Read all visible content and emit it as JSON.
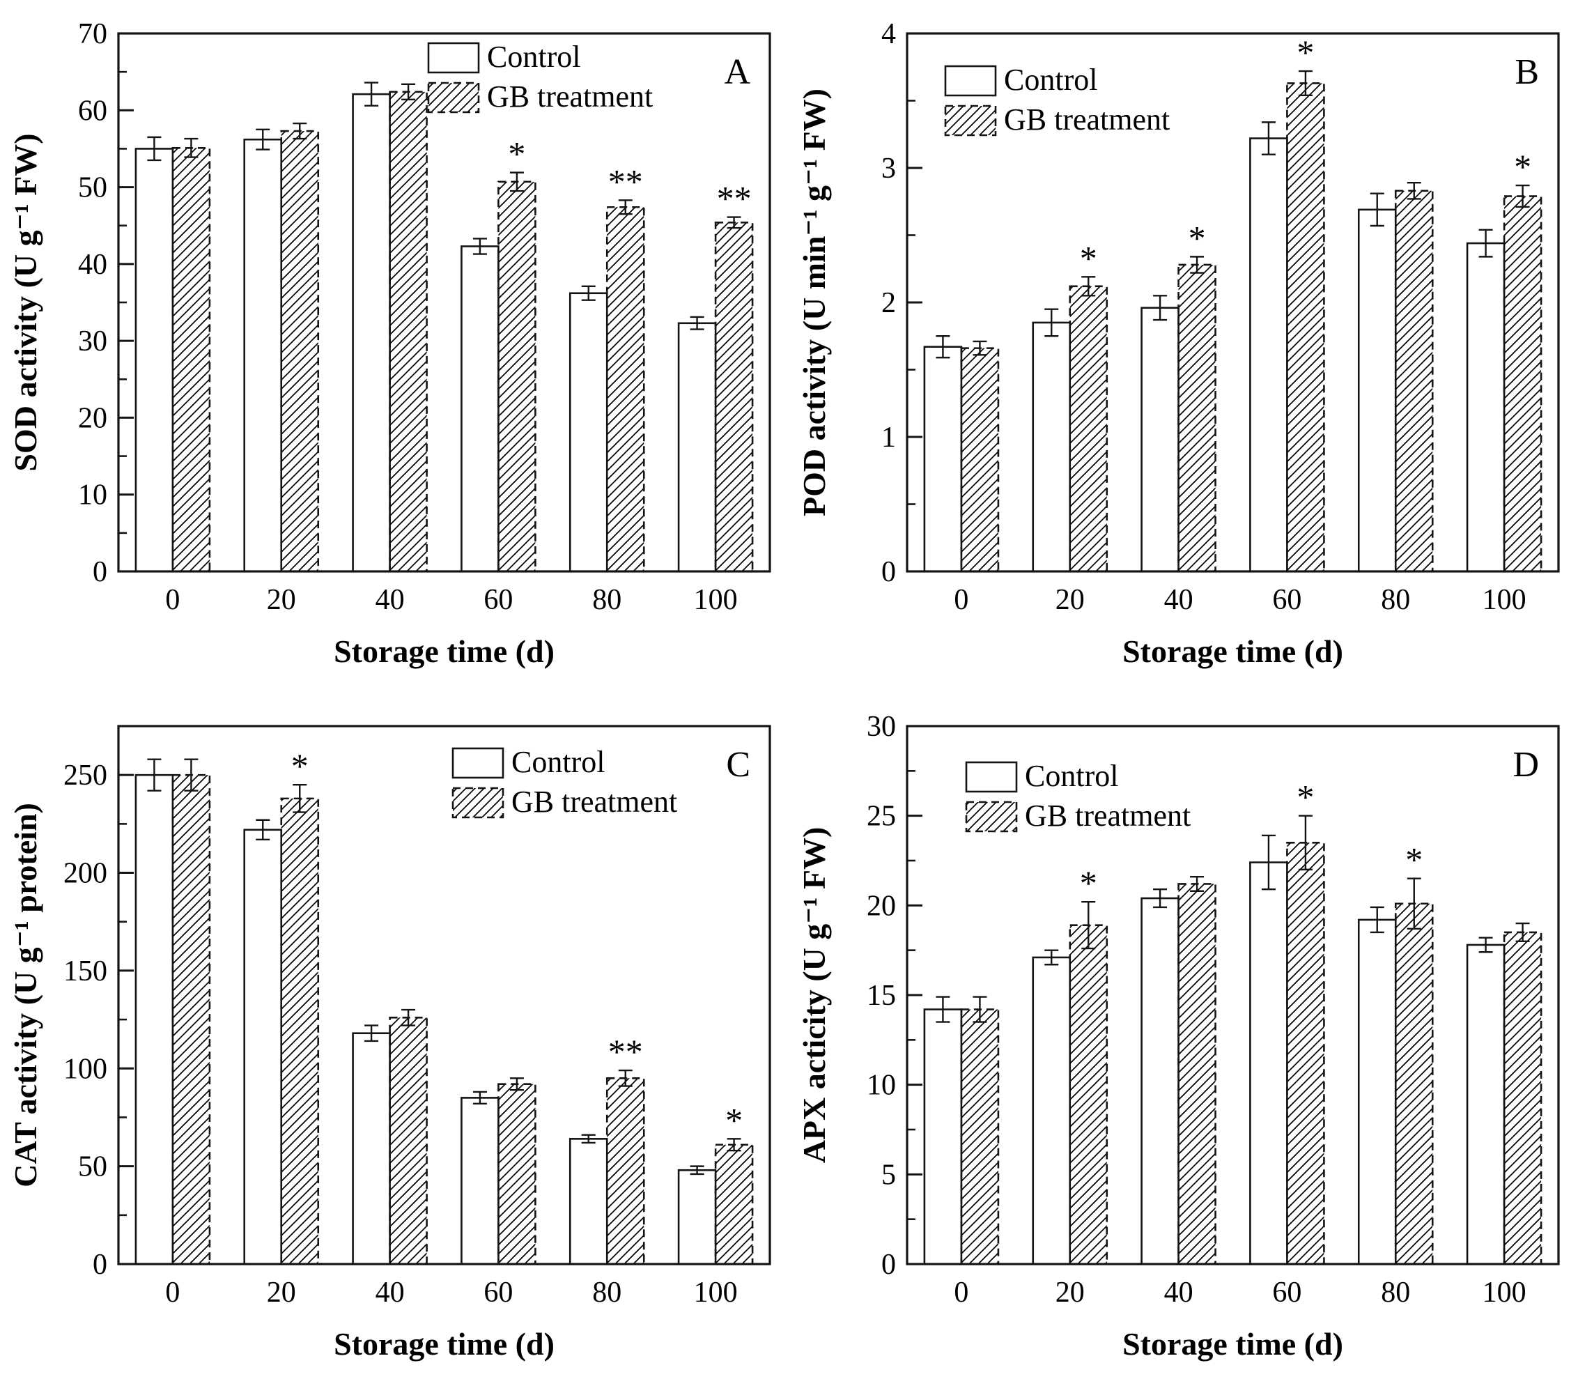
{
  "figure": {
    "description": "Four-panel bar chart figure comparing antioxidant enzyme activities of Control vs GB treatment over storage time",
    "legend_labels": [
      "Control",
      "GB treatment"
    ]
  },
  "chart_data": [
    {
      "type": "bar",
      "panel_label": "A",
      "xlabel": "Storage time (d)",
      "ylabel": "SOD activity (U g⁻¹ FW)",
      "categories": [
        "0",
        "20",
        "40",
        "60",
        "80",
        "100"
      ],
      "ylim": [
        0,
        70
      ],
      "ytick_step": 10,
      "yminor_step": 5,
      "grid": false,
      "legend_position": "top-right-inner",
      "legend_x": 615,
      "legend_y": 62,
      "series": [
        {
          "name": "Control",
          "values": [
            55.0,
            56.2,
            62.1,
            42.3,
            36.2,
            32.3
          ],
          "errors": [
            1.5,
            1.3,
            1.5,
            1.0,
            0.9,
            0.8
          ]
        },
        {
          "name": "GB treatment",
          "values": [
            55.1,
            57.3,
            62.4,
            50.7,
            47.4,
            45.4
          ],
          "errors": [
            1.2,
            1.0,
            1.0,
            1.2,
            0.9,
            0.7
          ]
        }
      ],
      "significance": [
        "",
        "",
        "",
        "*",
        "**",
        "**"
      ]
    },
    {
      "type": "bar",
      "panel_label": "B",
      "xlabel": "Storage time (d)",
      "ylabel": "POD activity (U min⁻¹ g⁻¹ FW)",
      "categories": [
        "0",
        "20",
        "40",
        "60",
        "80",
        "100"
      ],
      "ylim": [
        0,
        4
      ],
      "ytick_step": 1,
      "yminor_step": 0.5,
      "grid": false,
      "legend_position": "top-left-inner",
      "legend_x": 225,
      "legend_y": 95,
      "series": [
        {
          "name": "Control",
          "values": [
            1.67,
            1.85,
            1.96,
            3.22,
            2.69,
            2.44
          ],
          "errors": [
            0.08,
            0.1,
            0.09,
            0.12,
            0.12,
            0.1
          ]
        },
        {
          "name": "GB treatment",
          "values": [
            1.66,
            2.12,
            2.28,
            3.63,
            2.83,
            2.79
          ],
          "errors": [
            0.05,
            0.07,
            0.06,
            0.09,
            0.06,
            0.08
          ]
        }
      ],
      "significance": [
        "",
        "*",
        "*",
        "*",
        "",
        "*"
      ]
    },
    {
      "type": "bar",
      "panel_label": "C",
      "xlabel": "Storage time (d)",
      "ylabel": "CAT activity (U g⁻¹ protein)",
      "categories": [
        "0",
        "20",
        "40",
        "60",
        "80",
        "100"
      ],
      "ylim": [
        0,
        275
      ],
      "ytick_step": 50,
      "yminor_step": 25,
      "grid": false,
      "legend_position": "top-right-inner",
      "legend_x": 650,
      "legend_y": 80,
      "series": [
        {
          "name": "Control",
          "values": [
            250,
            222,
            118,
            85,
            64,
            48
          ],
          "errors": [
            8,
            5,
            4,
            3,
            2,
            2
          ]
        },
        {
          "name": "GB treatment",
          "values": [
            250,
            238,
            126,
            92,
            95,
            61
          ],
          "errors": [
            8,
            7,
            4,
            3,
            4,
            3
          ]
        }
      ],
      "significance": [
        "",
        "*",
        "",
        "",
        "**",
        "*"
      ]
    },
    {
      "type": "bar",
      "panel_label": "D",
      "xlabel": "Storage time (d)",
      "ylabel": "APX acticity (U g⁻¹ FW)",
      "categories": [
        "0",
        "20",
        "40",
        "60",
        "80",
        "100"
      ],
      "ylim": [
        0,
        30
      ],
      "ytick_step": 5,
      "yminor_step": 2.5,
      "grid": false,
      "legend_position": "top-left-inner",
      "legend_x": 255,
      "legend_y": 100,
      "series": [
        {
          "name": "Control",
          "values": [
            14.2,
            17.1,
            20.4,
            22.4,
            19.2,
            17.8
          ],
          "errors": [
            0.7,
            0.4,
            0.5,
            1.5,
            0.7,
            0.4
          ]
        },
        {
          "name": "GB treatment",
          "values": [
            14.2,
            18.9,
            21.2,
            23.5,
            20.1,
            18.5
          ],
          "errors": [
            0.7,
            1.3,
            0.4,
            1.5,
            1.4,
            0.5
          ]
        }
      ],
      "significance": [
        "",
        "*",
        "",
        "*",
        "*",
        ""
      ]
    }
  ]
}
